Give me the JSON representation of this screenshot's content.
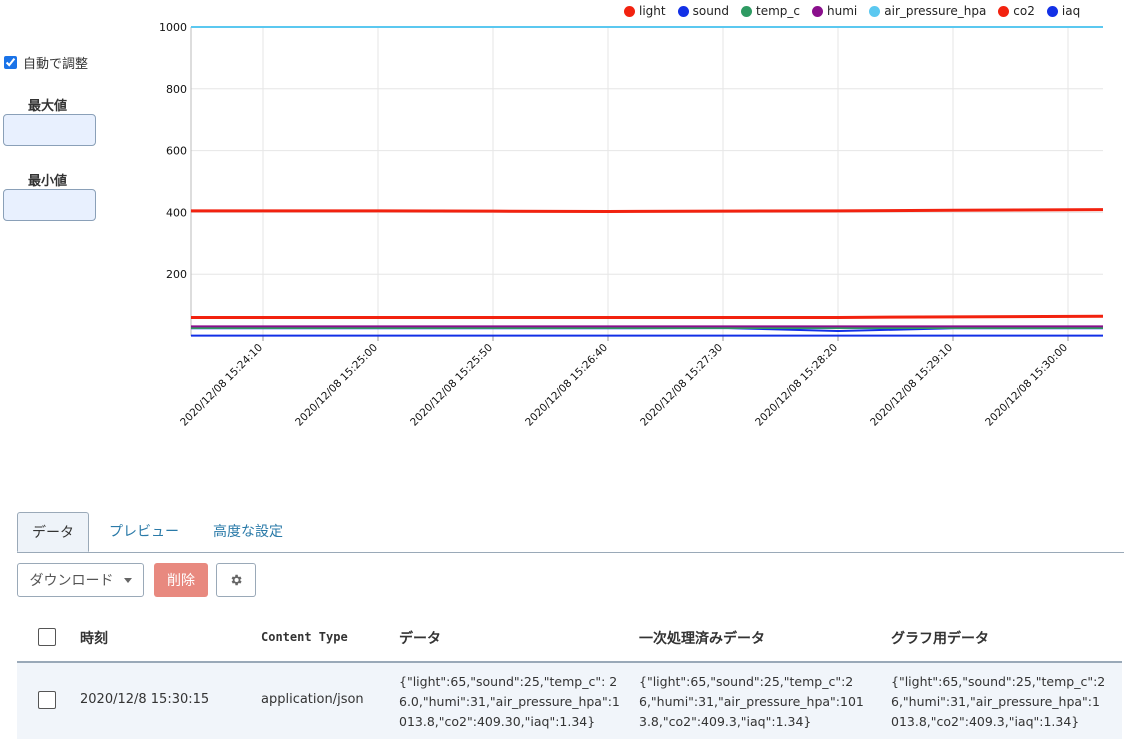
{
  "controls": {
    "auto_adjust_label": "自動で調整",
    "auto_adjust_checked": true,
    "max_label": "最大値",
    "min_label": "最小値",
    "max_value": "",
    "min_value": ""
  },
  "chart_data": {
    "type": "line",
    "ylim": [
      0,
      1000
    ],
    "yticks": [
      200,
      400,
      600,
      800,
      1000
    ],
    "x": [
      "2020/12/08 15:24:10",
      "2020/12/08 15:25:00",
      "2020/12/08 15:25:50",
      "2020/12/08 15:26:40",
      "2020/12/08 15:27:30",
      "2020/12/08 15:28:20",
      "2020/12/08 15:29:10",
      "2020/12/08 15:30:00"
    ],
    "grid": true,
    "legend_position": "top-right",
    "series": [
      {
        "name": "light",
        "color": "#f2220f",
        "values": [
          60,
          60,
          60,
          60,
          60,
          60,
          62,
          64
        ]
      },
      {
        "name": "sound",
        "color": "#1230e6",
        "values": [
          25,
          25,
          25,
          25,
          26,
          16,
          25,
          25
        ]
      },
      {
        "name": "temp_c",
        "color": "#2e9a62",
        "values": [
          26,
          26,
          26,
          26,
          26,
          26,
          26,
          26
        ]
      },
      {
        "name": "humi",
        "color": "#8a0f8c",
        "values": [
          31,
          31,
          31,
          31,
          31,
          31,
          31,
          31
        ]
      },
      {
        "name": "air_pressure_hpa",
        "color": "#5bc8f0",
        "values": [
          1013.8,
          1013.8,
          1013.8,
          1013.8,
          1013.8,
          1013.8,
          1013.8,
          1013.8
        ]
      },
      {
        "name": "co2",
        "color": "#f2220f",
        "values": [
          405,
          405,
          404,
          403,
          404,
          405,
          407,
          409
        ]
      },
      {
        "name": "iaq",
        "color": "#1230e6",
        "values": [
          1.3,
          1.3,
          1.3,
          1.3,
          1.3,
          1.3,
          1.3,
          1.34
        ]
      }
    ]
  },
  "tabs": [
    {
      "label": "データ",
      "active": true
    },
    {
      "label": "プレビュー",
      "active": false
    },
    {
      "label": "高度な設定",
      "active": false
    }
  ],
  "toolbar": {
    "download_label": "ダウンロード",
    "delete_label": "削除",
    "settings_icon": "gear-icon"
  },
  "table": {
    "headers": [
      "時刻",
      "Content Type",
      "データ",
      "一次処理済みデータ",
      "グラフ用データ"
    ],
    "rows": [
      {
        "time": "2020/12/8 15:30:15",
        "content_type": "application/json",
        "data": "{\"light\":65,\"sound\":25,\"temp_c\": 26.0,\"humi\":31,\"air_pressure_hpa\":1013.8,\"co2\":409.30,\"iaq\":1.34}",
        "processed": "{\"light\":65,\"sound\":25,\"temp_c\":26,\"humi\":31,\"air_pressure_hpa\":1013.8,\"co2\":409.3,\"iaq\":1.34}",
        "graph": "{\"light\":65,\"sound\":25,\"temp_c\":26,\"humi\":31,\"air_pressure_hpa\":1013.8,\"co2\":409.3,\"iaq\":1.34}"
      }
    ]
  },
  "colors": {
    "accent": "#2a7aa8",
    "delete": "#e8897f",
    "row_bg": "#f1f5fa"
  }
}
